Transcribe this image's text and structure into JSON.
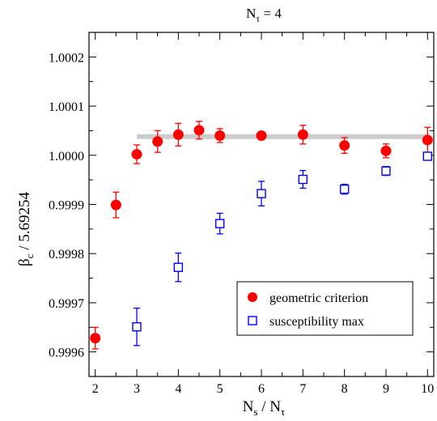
{
  "chart_data": {
    "type": "scatter",
    "title_main": "N",
    "title_sub": "τ",
    "title_tail": " = 4",
    "xlabel_parts": {
      "a": "N",
      "a_sub": "s",
      "mid": " / N",
      "b_sub": "τ"
    },
    "ylabel_parts": {
      "a": "β",
      "a_sub": "c",
      "rest": " / 5.69254"
    },
    "xlim": [
      1.85,
      10.15
    ],
    "ylim": [
      0.99955,
      1.00025
    ],
    "x_ticks": [
      "2",
      "3",
      "4",
      "5",
      "6",
      "7",
      "8",
      "9",
      "10"
    ],
    "y_ticks": [
      "0.9996",
      "0.9997",
      "0.9998",
      "0.9999",
      "1.0000",
      "1.0001",
      "1.0002"
    ],
    "band": {
      "x_start": 3.0,
      "x_end": 10.0,
      "y": 1.000038,
      "color": "#cccccc"
    },
    "series": [
      {
        "name": "geometric criterion",
        "marker": "filled-circle",
        "color": "#ff0000",
        "points": [
          {
            "x": 2.0,
            "y": 0.999628,
            "err": 2.2e-05
          },
          {
            "x": 2.5,
            "y": 0.999899,
            "err": 2.6e-05
          },
          {
            "x": 3.0,
            "y": 1.000002,
            "err": 1.9e-05
          },
          {
            "x": 3.5,
            "y": 1.000028,
            "err": 2.2e-05
          },
          {
            "x": 4.0,
            "y": 1.000042,
            "err": 2.3e-05
          },
          {
            "x": 4.5,
            "y": 1.000051,
            "err": 1.8e-05
          },
          {
            "x": 5.0,
            "y": 1.00004,
            "err": 1.4e-05
          },
          {
            "x": 6.0,
            "y": 1.00004,
            "err": 5e-06
          },
          {
            "x": 7.0,
            "y": 1.000042,
            "err": 1.9e-05
          },
          {
            "x": 8.0,
            "y": 1.00002,
            "err": 1.6e-05
          },
          {
            "x": 9.0,
            "y": 1.000009,
            "err": 1.4e-05
          },
          {
            "x": 10.0,
            "y": 1.000031,
            "err": 2.6e-05
          }
        ]
      },
      {
        "name": "susceptibility max",
        "marker": "open-square",
        "color": "#0000ff",
        "points": [
          {
            "x": 3.0,
            "y": 0.999651,
            "err": 3.8e-05
          },
          {
            "x": 4.0,
            "y": 0.999772,
            "err": 2.9e-05
          },
          {
            "x": 5.0,
            "y": 0.999861,
            "err": 2.1e-05
          },
          {
            "x": 6.0,
            "y": 0.999922,
            "err": 2.5e-05
          },
          {
            "x": 7.0,
            "y": 0.999951,
            "err": 1.8e-05
          },
          {
            "x": 8.0,
            "y": 0.999931,
            "err": 1e-05
          },
          {
            "x": 9.0,
            "y": 0.999968,
            "err": 9e-06
          },
          {
            "x": 10.0,
            "y": 0.999998,
            "err": 8e-06
          }
        ]
      }
    ],
    "legend": {
      "placement": "bottom-right"
    }
  }
}
